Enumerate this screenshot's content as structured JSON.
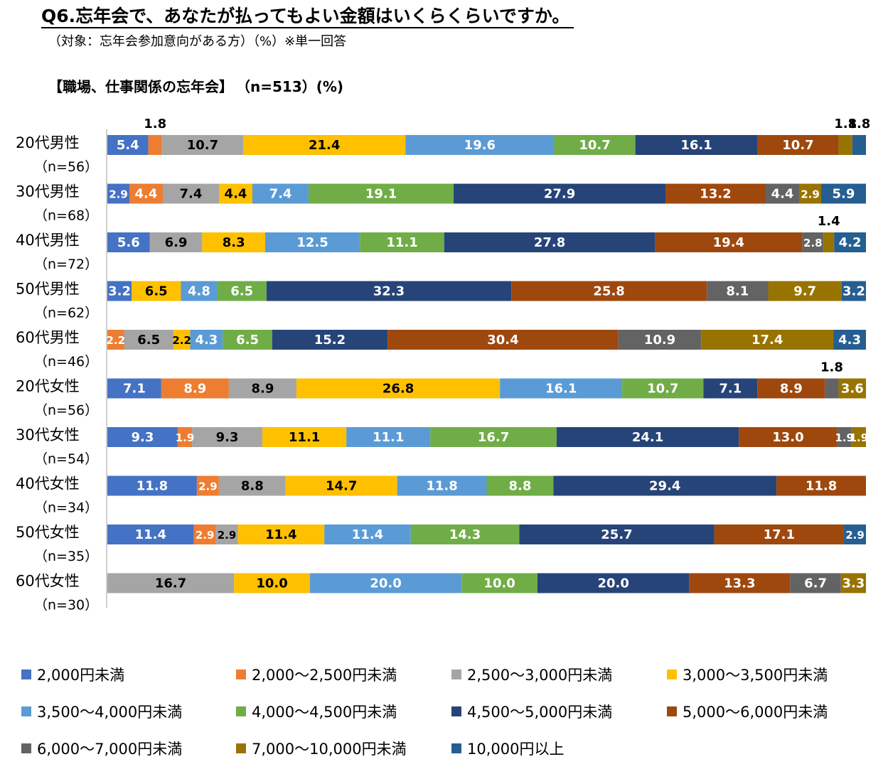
{
  "title": "Q6.忘年会で、あなたが払ってもよい金額はいくらくらいですか。",
  "subtitle": "（対象：忘年会参加意向がある方）（%）※単一回答",
  "section_title": "【職場、仕事関係の忘年会】",
  "section_n": "（n=513）(%)",
  "chart_data": {
    "type": "bar",
    "orientation": "horizontal",
    "stacked": "100%",
    "categories": [
      "20代男性",
      "30代男性",
      "40代男性",
      "50代男性",
      "60代男性",
      "20代女性",
      "30代女性",
      "40代女性",
      "50代女性",
      "60代女性"
    ],
    "category_n": [
      "（n=56）",
      "（n=68）",
      "（n=72）",
      "（n=62）",
      "（n=46）",
      "（n=56）",
      "（n=54）",
      "（n=34）",
      "（n=35）",
      "（n=30）"
    ],
    "series": [
      {
        "name": "2,000円未満",
        "color": "#4472C4",
        "values": [
          5.4,
          2.9,
          5.6,
          3.2,
          0,
          7.1,
          9.3,
          11.8,
          11.4,
          0
        ]
      },
      {
        "name": "2,000～2,500円未満",
        "color": "#ED7D31",
        "values": [
          1.8,
          4.4,
          0,
          0,
          2.2,
          8.9,
          1.9,
          2.9,
          2.9,
          0
        ]
      },
      {
        "name": "2,500～3,000円未満",
        "color": "#A5A5A5",
        "values": [
          10.7,
          7.4,
          6.9,
          0,
          6.5,
          8.9,
          9.3,
          8.8,
          2.9,
          16.7
        ]
      },
      {
        "name": "3,000～3,500円未満",
        "color": "#FFC000",
        "values": [
          21.4,
          4.4,
          8.3,
          6.5,
          2.2,
          26.8,
          11.1,
          14.7,
          11.4,
          10.0
        ]
      },
      {
        "name": "3,500～4,000円未満",
        "color": "#5B9BD5",
        "values": [
          19.6,
          7.4,
          12.5,
          4.8,
          4.3,
          16.1,
          11.1,
          11.8,
          11.4,
          20.0
        ]
      },
      {
        "name": "4,000～4,500円未満",
        "color": "#70AD47",
        "values": [
          10.7,
          19.1,
          11.1,
          6.5,
          6.5,
          10.7,
          16.7,
          8.8,
          14.3,
          10.0
        ]
      },
      {
        "name": "4,500～5,000円未満",
        "color": "#264478",
        "values": [
          16.1,
          27.9,
          27.8,
          32.3,
          15.2,
          7.1,
          24.1,
          29.4,
          25.7,
          20.0
        ]
      },
      {
        "name": "5,000～6,000円未満",
        "color": "#9E480E",
        "values": [
          10.7,
          13.2,
          19.4,
          25.8,
          30.4,
          8.9,
          13.0,
          11.8,
          17.1,
          13.3
        ]
      },
      {
        "name": "6,000～7,000円未満",
        "color": "#636363",
        "values": [
          0,
          4.4,
          2.8,
          8.1,
          10.9,
          1.8,
          1.9,
          0,
          0,
          6.7
        ]
      },
      {
        "name": "7,000～10,000円未満",
        "color": "#997300",
        "values": [
          1.8,
          2.9,
          1.4,
          9.7,
          17.4,
          3.6,
          1.9,
          0,
          0,
          3.3
        ]
      },
      {
        "name": "10,000円以上",
        "color": "#255E91",
        "values": [
          1.8,
          5.9,
          4.2,
          3.2,
          4.3,
          0,
          0,
          0,
          2.9,
          0
        ]
      }
    ],
    "xlim": [
      0,
      100
    ],
    "legend_position": "bottom",
    "grid": false
  }
}
